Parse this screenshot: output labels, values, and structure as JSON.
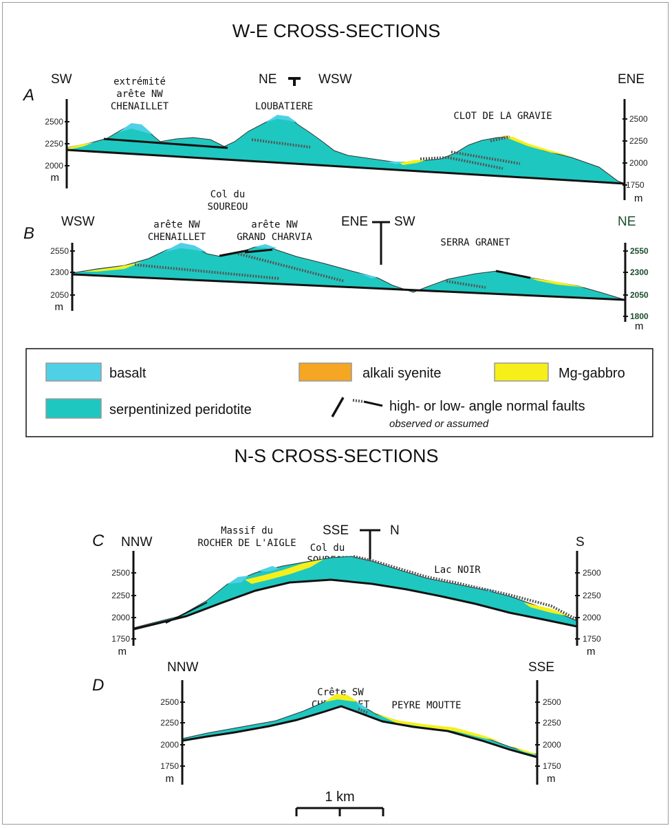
{
  "title_we": "W-E CROSS-SECTIONS",
  "title_ns": "N-S CROSS-SECTIONS",
  "colors": {
    "basalt": "#4fd0e6",
    "serpentinized_peridotite": "#1ec8c0",
    "alkali_syenite": "#f5a623",
    "mg_gabbro": "#f7ef1a",
    "fault": "#111111",
    "green_ticks": "#1a4d2e"
  },
  "sections": {
    "A": {
      "label": "A",
      "dir_left": "SW",
      "dir_mid_left": "NE",
      "dir_mid_right": "WSW",
      "dir_right": "ENE",
      "place1_l1": "extrémité",
      "place1_l2": "arête NW",
      "place1_l3": "CHENAILLET",
      "place2": "LOUBATIERE",
      "place3": "CLOT DE LA GRAVIE",
      "ticks_left": [
        "2500",
        "2250",
        "2000"
      ],
      "ticks_right": [
        "2500",
        "2250",
        "2000",
        "1750"
      ],
      "unit": "m"
    },
    "B": {
      "label": "B",
      "dir_left": "WSW",
      "dir_mid_left": "ENE",
      "dir_mid_right": "SW",
      "dir_right": "NE",
      "col_l1": "Col du",
      "col_l2": "SOUREOU",
      "place1_l1": "arête NW",
      "place1_l2": "CHENAILLET",
      "place2_l1": "arête NW",
      "place2_l2": "GRAND CHARVIA",
      "place3": "SERRA GRANET",
      "ticks_left": [
        "2550",
        "2300",
        "2050"
      ],
      "ticks_right": [
        "2550",
        "2300",
        "2050",
        "1800"
      ],
      "unit": "m"
    },
    "C": {
      "label": "C",
      "dir_left": "NNW",
      "dir_mid_left": "SSE",
      "dir_mid_right": "N",
      "dir_right": "S",
      "place1_l1": "Massif du",
      "place1_l2": "ROCHER DE L'AIGLE",
      "col_l1": "Col du",
      "col_l2": "SOUREOU",
      "place2": "Lac NOIR",
      "ticks_left": [
        "2500",
        "2250",
        "2000",
        "1750"
      ],
      "ticks_right": [
        "2500",
        "2250",
        "2000",
        "1750"
      ],
      "unit": "m"
    },
    "D": {
      "label": "D",
      "dir_left": "NNW",
      "dir_right": "SSE",
      "place1_l1": "Crête SW",
      "place1_l2": "CHENAILLET",
      "place2": "PEYRE MOUTTE",
      "ticks_left": [
        "2500",
        "2250",
        "2000",
        "1750"
      ],
      "ticks_right": [
        "2500",
        "2250",
        "2000",
        "1750"
      ],
      "unit": "m"
    }
  },
  "legend": {
    "basalt": "basalt",
    "alkali_syenite": "alkali syenite",
    "mg_gabbro": "Mg-gabbro",
    "serpentinized_peridotite": "serpentinized peridotite",
    "faults": "high- or low- angle normal faults",
    "faults_note": "observed or assumed"
  },
  "scale_bar": "1 km"
}
